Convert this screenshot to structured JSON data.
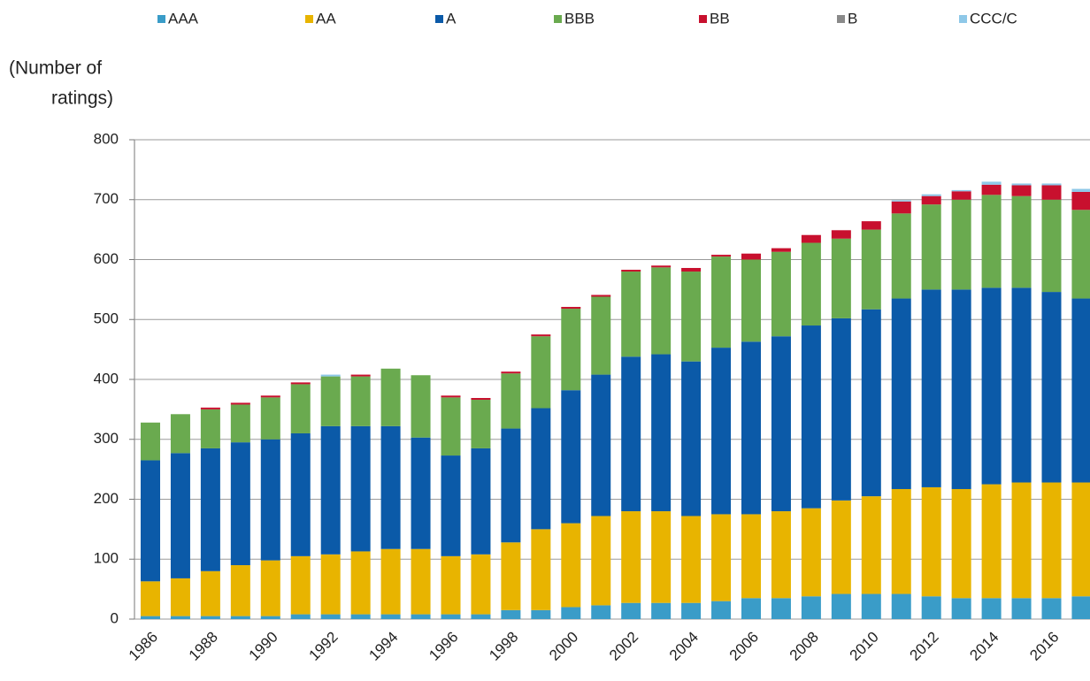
{
  "chart_data": {
    "type": "stacked_bar",
    "y_label_lines": [
      "(Number of",
      "ratings)"
    ],
    "categories": [
      "1986",
      null,
      "1988",
      null,
      "1990",
      null,
      "1992",
      null,
      "1994",
      null,
      "1996",
      null,
      "1998",
      null,
      "2000",
      null,
      "2002",
      null,
      "2004",
      null,
      "2006",
      null,
      "2008",
      null,
      "2010",
      null,
      "2012",
      null,
      "2014",
      null,
      "2016",
      null
    ],
    "series": [
      {
        "name": "AAA",
        "color": "#3a9cc8",
        "values": [
          5,
          5,
          5,
          5,
          5,
          8,
          8,
          8,
          8,
          8,
          8,
          8,
          15,
          15,
          20,
          23,
          27,
          27,
          27,
          30,
          35,
          35,
          38,
          42,
          42,
          42,
          38,
          35,
          35,
          35,
          35,
          38
        ]
      },
      {
        "name": "AA",
        "color": "#e8b400",
        "values": [
          58,
          63,
          75,
          85,
          93,
          97,
          100,
          105,
          109,
          109,
          97,
          100,
          113,
          135,
          140,
          149,
          153,
          153,
          145,
          145,
          140,
          145,
          147,
          156,
          163,
          175,
          182,
          182,
          190,
          193,
          193,
          190
        ]
      },
      {
        "name": "A",
        "color": "#0b5aa8",
        "values": [
          202,
          209,
          205,
          205,
          202,
          205,
          214,
          209,
          205,
          186,
          168,
          177,
          190,
          202,
          222,
          236,
          258,
          262,
          258,
          278,
          288,
          292,
          305,
          304,
          312,
          318,
          330,
          333,
          328,
          325,
          318,
          307
        ]
      },
      {
        "name": "BBB",
        "color": "#6aaa4f",
        "values": [
          63,
          65,
          65,
          63,
          70,
          82,
          83,
          83,
          96,
          104,
          97,
          81,
          92,
          120,
          136,
          130,
          142,
          145,
          150,
          152,
          137,
          141,
          138,
          133,
          133,
          142,
          142,
          150,
          155,
          153,
          154,
          148
        ]
      },
      {
        "name": "BB",
        "color": "#c8102e",
        "values": [
          0,
          0,
          3,
          3,
          3,
          3,
          0,
          3,
          0,
          0,
          3,
          3,
          3,
          3,
          3,
          3,
          3,
          3,
          6,
          3,
          10,
          6,
          13,
          14,
          14,
          20,
          14,
          14,
          17,
          18,
          24,
          30
        ]
      },
      {
        "name": "B",
        "color": "#8a8a8a",
        "values": [
          0,
          0,
          0,
          0,
          0,
          0,
          0,
          0,
          0,
          0,
          0,
          0,
          0,
          0,
          0,
          0,
          0,
          0,
          0,
          0,
          0,
          0,
          0,
          0,
          0,
          0,
          0,
          0,
          0,
          0,
          0,
          0
        ]
      },
      {
        "name": "CCC/C",
        "color": "#8ec8e8",
        "values": [
          0,
          0,
          0,
          0,
          0,
          0,
          3,
          0,
          0,
          0,
          0,
          0,
          0,
          0,
          0,
          0,
          0,
          0,
          0,
          0,
          0,
          0,
          0,
          0,
          0,
          2,
          3,
          2,
          5,
          3,
          3,
          5
        ]
      }
    ],
    "ylim": [
      0,
      800
    ],
    "yticks": [
      0,
      100,
      200,
      300,
      400,
      500,
      600,
      700,
      800
    ],
    "grid": true
  }
}
